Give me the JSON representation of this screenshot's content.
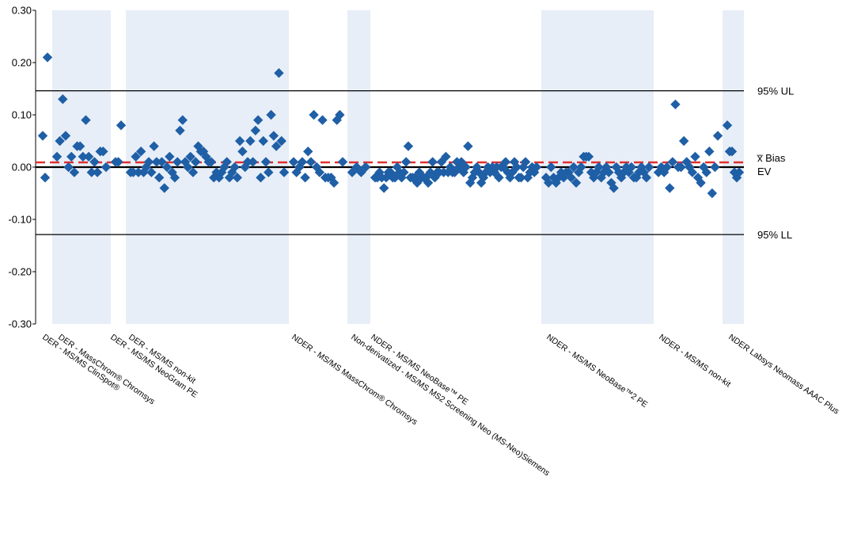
{
  "chart_data": {
    "type": "scatter",
    "ylim": [
      -0.3,
      0.3
    ],
    "y_ticks": [
      "0.30",
      "0.20",
      "0.10",
      "0.00",
      "-0.10",
      "-0.20",
      "-0.30"
    ],
    "y_tick_values": [
      0.3,
      0.2,
      0.1,
      0.0,
      -0.1,
      -0.2,
      -0.3
    ],
    "grid": false,
    "marker_color": "#1f5fa6",
    "shade_color": "#e8eef7",
    "groups": [
      {
        "label": "DER - MS/MS ClinSpot®",
        "shaded": false,
        "values": [
          0.06,
          -0.02,
          0.21
        ]
      },
      {
        "label": "DER - MassChrom® Chromsys",
        "shaded": true,
        "values": [
          0.02,
          0.05,
          0.13,
          0.06,
          0.0,
          0.02,
          -0.01,
          0.04,
          0.04,
          0.02,
          0.09,
          0.02,
          -0.01,
          0.01,
          -0.01,
          0.03,
          0.03,
          0.0
        ]
      },
      {
        "label": "DER - MS/MS NeoGram PE",
        "shaded": false,
        "values": [
          0.01,
          0.01,
          0.08
        ]
      },
      {
        "label": "DER - MS/MS non-kit",
        "shaded": true,
        "values": [
          -0.01,
          -0.01,
          0.02,
          -0.01,
          0.03,
          -0.01,
          0.0,
          0.01,
          -0.01,
          0.04,
          0.01,
          -0.02,
          0.01,
          -0.04,
          0.0,
          0.02,
          -0.01,
          -0.02,
          0.01,
          0.07,
          0.09,
          0.01,
          0.0,
          0.02,
          -0.01,
          0.01,
          0.04,
          0.03,
          0.03,
          0.02,
          0.01,
          0.01,
          -0.02,
          -0.01,
          -0.02,
          -0.01,
          0.0,
          0.01,
          -0.02,
          -0.01,
          0.0,
          -0.02,
          0.05,
          0.03,
          0.0,
          0.01,
          0.05,
          0.01,
          0.07,
          0.09,
          -0.02,
          0.05,
          0.01,
          -0.01,
          0.1,
          0.06,
          0.04,
          0.18,
          0.05,
          -0.01
        ]
      },
      {
        "label": "NDER - MS/MS MassChrom® Chromsys",
        "shaded": false,
        "values": [
          0.01,
          -0.01,
          0.0,
          0.01,
          -0.02,
          0.03,
          0.01,
          0.1,
          0.0,
          -0.01,
          0.09,
          -0.02,
          -0.02,
          -0.02,
          -0.03,
          0.09,
          0.1,
          0.01
        ]
      },
      {
        "label": "Non-derivatized - MS/MS MS2 Screening Neo (MS-Neo)Siemens",
        "shaded": true,
        "values": [
          -0.01,
          0.0,
          -0.01,
          0.0
        ]
      },
      {
        "label": "NDER - MS/MS NeoBase™ PE",
        "shaded": false,
        "values": [
          -0.02,
          -0.02,
          -0.01,
          -0.02,
          -0.04,
          -0.02,
          -0.01,
          -0.01,
          -0.02,
          -0.02,
          0.0,
          -0.01,
          -0.02,
          -0.01,
          0.01,
          0.04,
          -0.02,
          -0.02,
          -0.02,
          -0.03,
          -0.01,
          -0.02,
          -0.02,
          -0.02,
          -0.03,
          -0.01,
          0.01,
          -0.02,
          -0.01,
          -0.01,
          0.01,
          -0.01,
          0.02,
          -0.01,
          0.0,
          -0.01,
          -0.01,
          0.01,
          0.0,
          0.01,
          -0.01,
          0.0,
          0.04,
          -0.03,
          -0.02,
          -0.01,
          0.0,
          -0.01,
          -0.03,
          -0.02,
          -0.01,
          0.0,
          -0.01,
          0.0,
          -0.01,
          0.0,
          -0.02,
          0.0,
          0.0,
          0.01,
          -0.01,
          -0.02,
          -0.01,
          0.01,
          0.0,
          -0.02,
          -0.02,
          0.0,
          0.01,
          -0.02,
          -0.01,
          0.0,
          -0.01,
          0.0
        ]
      },
      {
        "label": "NDER - MS/MS NeoBase™2 PE",
        "shaded": true,
        "values": [
          -0.02,
          -0.03,
          0.0,
          -0.02,
          -0.03,
          -0.02,
          -0.01,
          -0.02,
          -0.01,
          -0.01,
          -0.02,
          0.0,
          -0.03,
          -0.01,
          0.0,
          0.02,
          0.02,
          0.02,
          -0.01,
          -0.02,
          -0.01,
          0.0,
          -0.02,
          -0.01,
          0.0,
          -0.01,
          -0.03,
          -0.04,
          0.0,
          -0.01,
          -0.02,
          -0.01,
          0.0,
          -0.01,
          0.0,
          -0.02,
          -0.02,
          -0.01,
          0.0,
          -0.01,
          -0.02,
          0.0
        ]
      },
      {
        "label": "NDER - MS/MS non-kit",
        "shaded": false,
        "values": [
          -0.01,
          0.0,
          -0.01,
          0.0,
          -0.04,
          0.01,
          0.12,
          0.0,
          0.0,
          0.05,
          0.01,
          0.0,
          -0.01,
          0.02,
          -0.02,
          -0.03,
          0.0,
          -0.01,
          0.03,
          -0.05,
          0.0,
          0.06
        ]
      },
      {
        "label": "NDER Labsys Neomass AAAC Plus",
        "shaded": true,
        "values": [
          0.08,
          0.03,
          0.03,
          -0.01,
          -0.02,
          -0.01
        ]
      }
    ],
    "reference_lines": [
      {
        "label": "95% UL",
        "value": 0.146,
        "color": "#000000",
        "style": "solid"
      },
      {
        "label": "x̅ Bias",
        "value": 0.009,
        "color": "#e03030",
        "style": "dashed"
      },
      {
        "label": "EV",
        "value": 0.0,
        "color": "#000000",
        "style": "solid-bold"
      },
      {
        "label": "95% LL",
        "value": -0.129,
        "color": "#000000",
        "style": "solid"
      }
    ]
  }
}
